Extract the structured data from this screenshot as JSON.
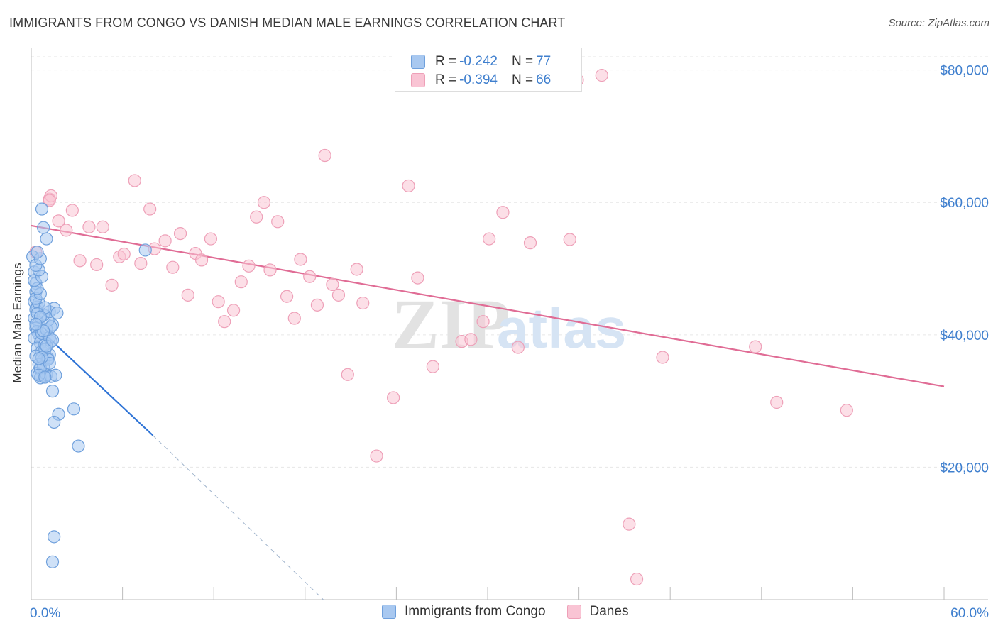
{
  "title": "IMMIGRANTS FROM CONGO VS DANISH MEDIAN MALE EARNINGS CORRELATION CHART",
  "source": "Source: ZipAtlas.com",
  "watermark": {
    "zip": "ZIP",
    "atlas": "atlas"
  },
  "legend": {
    "rows": [
      {
        "r_label": "R =",
        "r_value": "-0.242",
        "n_label": "N =",
        "n_value": "77",
        "color": "#a8c8f0",
        "border": "#6fa0dc"
      },
      {
        "r_label": "R =",
        "r_value": "-0.394",
        "n_label": "N =",
        "n_value": "66",
        "color": "#f9c4d4",
        "border": "#eea0b8"
      }
    ]
  },
  "bottom_legend": [
    {
      "label": "Immigrants from Congo",
      "color": "#a8c8f0",
      "border": "#6fa0dc"
    },
    {
      "label": "Danes",
      "color": "#f9c4d4",
      "border": "#eea0b8"
    }
  ],
  "chart_data": {
    "type": "scatter",
    "title": "IMMIGRANTS FROM CONGO VS DANISH MEDIAN MALE EARNINGS CORRELATION CHART",
    "xlabel": "",
    "ylabel": "Median Male Earnings",
    "xlim": [
      0,
      60
    ],
    "ylim": [
      0,
      82000
    ],
    "x_tick_labels": [
      "0.0%",
      "60.0%"
    ],
    "y_ticks": [
      20000,
      40000,
      60000,
      80000
    ],
    "y_tick_labels": [
      "$20,000",
      "$40,000",
      "$60,000",
      "$80,000"
    ],
    "grid": true,
    "series": [
      {
        "name": "Immigrants from Congo",
        "color": "#6fa0dc",
        "fill": "#a8c8f0",
        "trend": {
          "x": [
            0.0,
            8.0
          ],
          "y": [
            42000,
            24800
          ],
          "dash_to_x": 19.2,
          "dash_to_y": 0
        },
        "points": [
          [
            0.1,
            51800
          ],
          [
            0.2,
            49500
          ],
          [
            0.3,
            47800
          ],
          [
            0.3,
            46500
          ],
          [
            0.2,
            45000
          ],
          [
            0.4,
            44200
          ],
          [
            0.3,
            43800
          ],
          [
            0.2,
            42500
          ],
          [
            0.5,
            41800
          ],
          [
            0.3,
            41000
          ],
          [
            0.4,
            40500
          ],
          [
            0.5,
            40000
          ],
          [
            0.2,
            39500
          ],
          [
            0.6,
            38800
          ],
          [
            0.4,
            38000
          ],
          [
            0.7,
            37500
          ],
          [
            0.3,
            36800
          ],
          [
            0.8,
            36200
          ],
          [
            0.5,
            35500
          ],
          [
            0.6,
            34800
          ],
          [
            0.4,
            34200
          ],
          [
            0.9,
            33800
          ],
          [
            0.6,
            33500
          ],
          [
            1.0,
            34000
          ],
          [
            0.8,
            35200
          ],
          [
            1.1,
            36500
          ],
          [
            1.2,
            37000
          ],
          [
            0.9,
            38500
          ],
          [
            1.3,
            39000
          ],
          [
            0.7,
            40200
          ],
          [
            1.0,
            40800
          ],
          [
            1.4,
            41500
          ],
          [
            1.1,
            42200
          ],
          [
            0.8,
            43000
          ],
          [
            1.2,
            43500
          ],
          [
            1.5,
            44000
          ],
          [
            0.5,
            44800
          ],
          [
            0.3,
            45500
          ],
          [
            0.6,
            46200
          ],
          [
            0.4,
            47000
          ],
          [
            0.2,
            48200
          ],
          [
            0.7,
            48800
          ],
          [
            0.5,
            49800
          ],
          [
            0.3,
            50500
          ],
          [
            0.6,
            51500
          ],
          [
            0.4,
            52500
          ],
          [
            0.8,
            56200
          ],
          [
            0.7,
            59000
          ],
          [
            1.0,
            54500
          ],
          [
            1.3,
            33700
          ],
          [
            1.6,
            33900
          ],
          [
            1.4,
            31500
          ],
          [
            1.8,
            28000
          ],
          [
            1.5,
            26800
          ],
          [
            2.8,
            28800
          ],
          [
            3.1,
            23200
          ],
          [
            1.5,
            9500
          ],
          [
            1.4,
            5700
          ],
          [
            7.5,
            52800
          ],
          [
            1.2,
            39600
          ],
          [
            0.9,
            37800
          ],
          [
            1.1,
            36300
          ],
          [
            0.6,
            35000
          ],
          [
            0.5,
            33900
          ],
          [
            1.7,
            43300
          ],
          [
            0.9,
            44100
          ],
          [
            1.3,
            41200
          ],
          [
            0.4,
            43200
          ],
          [
            0.8,
            40600
          ],
          [
            1.0,
            38300
          ],
          [
            0.6,
            42700
          ],
          [
            1.2,
            35700
          ],
          [
            0.7,
            36600
          ],
          [
            0.9,
            33600
          ],
          [
            1.4,
            39200
          ],
          [
            0.3,
            41600
          ],
          [
            0.5,
            36400
          ]
        ]
      },
      {
        "name": "Danes",
        "color": "#eea0b8",
        "fill": "#f9c4d4",
        "trend": {
          "x": [
            0.0,
            60.0
          ],
          "y": [
            56500,
            32200
          ]
        },
        "points": [
          [
            0.3,
            52500
          ],
          [
            1.2,
            60500
          ],
          [
            1.3,
            61000
          ],
          [
            1.8,
            57200
          ],
          [
            2.3,
            55800
          ],
          [
            2.7,
            58800
          ],
          [
            3.2,
            51200
          ],
          [
            3.8,
            56300
          ],
          [
            4.3,
            50600
          ],
          [
            4.7,
            56300
          ],
          [
            5.3,
            47500
          ],
          [
            5.8,
            51800
          ],
          [
            6.1,
            52200
          ],
          [
            6.8,
            63300
          ],
          [
            7.2,
            50800
          ],
          [
            7.8,
            59000
          ],
          [
            8.1,
            53000
          ],
          [
            8.8,
            54200
          ],
          [
            9.3,
            50200
          ],
          [
            9.8,
            55300
          ],
          [
            10.3,
            46000
          ],
          [
            10.8,
            52300
          ],
          [
            11.2,
            51300
          ],
          [
            11.8,
            54500
          ],
          [
            12.3,
            45000
          ],
          [
            12.7,
            42000
          ],
          [
            13.3,
            43700
          ],
          [
            13.8,
            48000
          ],
          [
            14.3,
            50400
          ],
          [
            14.8,
            57800
          ],
          [
            15.3,
            60000
          ],
          [
            15.7,
            49800
          ],
          [
            16.2,
            57100
          ],
          [
            16.8,
            45800
          ],
          [
            17.3,
            42500
          ],
          [
            17.7,
            51400
          ],
          [
            18.3,
            48800
          ],
          [
            18.8,
            44500
          ],
          [
            19.3,
            67100
          ],
          [
            19.8,
            47600
          ],
          [
            20.2,
            46000
          ],
          [
            20.8,
            34000
          ],
          [
            21.4,
            49900
          ],
          [
            21.8,
            44800
          ],
          [
            22.7,
            21700
          ],
          [
            23.8,
            30500
          ],
          [
            24.8,
            62500
          ],
          [
            25.4,
            48600
          ],
          [
            26.4,
            35200
          ],
          [
            28.3,
            39000
          ],
          [
            28.9,
            39300
          ],
          [
            29.7,
            42000
          ],
          [
            30.1,
            54500
          ],
          [
            31.0,
            58500
          ],
          [
            32.0,
            38100
          ],
          [
            32.8,
            53900
          ],
          [
            35.4,
            54400
          ],
          [
            35.9,
            78500
          ],
          [
            37.5,
            79200
          ],
          [
            39.3,
            11400
          ],
          [
            39.8,
            3100
          ],
          [
            41.5,
            36600
          ],
          [
            47.6,
            38200
          ],
          [
            49.0,
            29800
          ],
          [
            53.6,
            28600
          ],
          [
            1.2,
            60300
          ]
        ]
      }
    ]
  }
}
